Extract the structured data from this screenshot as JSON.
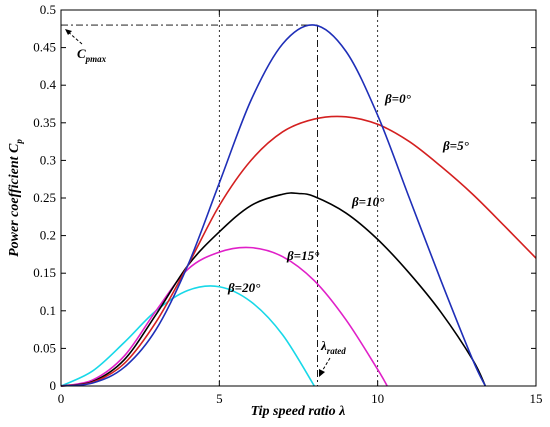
{
  "chart_data": {
    "type": "line",
    "xlabel": "Tip speed ratio λ",
    "ylabel": "Power coefficient C",
    "ylabel_sub": "p",
    "xlim": [
      0,
      15
    ],
    "ylim": [
      0,
      0.5
    ],
    "xticks": [
      0,
      5,
      10,
      15
    ],
    "yticks": [
      0,
      0.05,
      0.1,
      0.15,
      0.2,
      0.25,
      0.3,
      0.35,
      0.4,
      0.45,
      0.5
    ],
    "grid": "dotted",
    "series": [
      {
        "name": "β=0°",
        "color": "#1f2fb8",
        "x": [
          0,
          1,
          2,
          3,
          4,
          5,
          6,
          7,
          8,
          9,
          10,
          11,
          12,
          13,
          13.4
        ],
        "y": [
          0,
          0.004,
          0.025,
          0.075,
          0.16,
          0.27,
          0.38,
          0.455,
          0.48,
          0.445,
          0.36,
          0.25,
          0.14,
          0.035,
          0
        ]
      },
      {
        "name": "β=5°",
        "color": "#d42020",
        "x": [
          0,
          1,
          2,
          3,
          4,
          5,
          6,
          7,
          8,
          9,
          10,
          11,
          12,
          13,
          14,
          15
        ],
        "y": [
          0,
          0.005,
          0.03,
          0.085,
          0.16,
          0.24,
          0.3,
          0.338,
          0.355,
          0.358,
          0.348,
          0.325,
          0.292,
          0.255,
          0.213,
          0.17
        ]
      },
      {
        "name": "β=10°",
        "color": "#000000",
        "x": [
          0,
          1,
          2,
          3,
          4,
          5,
          6,
          7,
          7.5,
          8,
          9,
          10,
          11,
          12,
          13,
          13.4
        ],
        "y": [
          0,
          0.006,
          0.035,
          0.095,
          0.16,
          0.205,
          0.24,
          0.255,
          0.256,
          0.252,
          0.23,
          0.195,
          0.15,
          0.098,
          0.035,
          0
        ]
      },
      {
        "name": "β=15°",
        "color": "#e020c8",
        "x": [
          0,
          1,
          2,
          3,
          4,
          5,
          6,
          7,
          8,
          9,
          10,
          10.3
        ],
        "y": [
          0,
          0.008,
          0.04,
          0.1,
          0.155,
          0.178,
          0.184,
          0.172,
          0.14,
          0.088,
          0.022,
          0
        ]
      },
      {
        "name": "β=20°",
        "color": "#18d8e8",
        "x": [
          0,
          1,
          2,
          3,
          4,
          5,
          6,
          7,
          8
        ],
        "y": [
          0,
          0.02,
          0.058,
          0.1,
          0.127,
          0.132,
          0.112,
          0.068,
          0
        ]
      }
    ],
    "annotations": {
      "cpmax": {
        "label": "C",
        "sub": "pmax",
        "y": 0.48
      },
      "rated": {
        "label": "λ",
        "sub": "rated",
        "x": 8.1
      }
    },
    "vertical_reference_lines": [
      5,
      10
    ]
  }
}
